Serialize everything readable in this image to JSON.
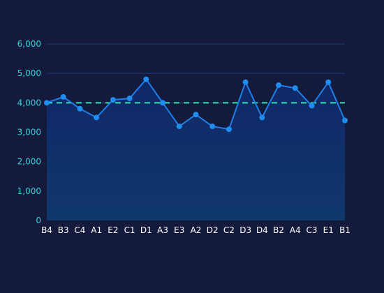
{
  "chart_data": {
    "type": "line",
    "title": "",
    "xlabel": "",
    "ylabel": "",
    "categories": [
      "B4",
      "B3",
      "C4",
      "A1",
      "E2",
      "C1",
      "D1",
      "A3",
      "E3",
      "A2",
      "D2",
      "C2",
      "D3",
      "D4",
      "B2",
      "A4",
      "C3",
      "E1",
      "B1"
    ],
    "series": [
      {
        "values": [
          4000,
          4200,
          3800,
          3500,
          4100,
          4150,
          4800,
          4000,
          3200,
          3600,
          3200,
          3100,
          4700,
          3500,
          4600,
          4500,
          3900,
          4700,
          3400
        ]
      }
    ],
    "reference_line": {
      "value": 4000,
      "style": "dashed"
    },
    "ylim": [
      0,
      6000
    ],
    "yticks": [
      0,
      1000,
      2000,
      3000,
      4000,
      5000,
      6000
    ],
    "ytick_labels": [
      "0",
      "1,000",
      "2,000",
      "3,000",
      "4,000",
      "5,000",
      "6,000"
    ],
    "grid": true,
    "area_fill": true,
    "legend": "none",
    "colors": {
      "background": "#141a3c",
      "line": "#1f7fe8",
      "marker": "#1f8cf0",
      "reference_line": "#2ee6b0",
      "grid": "#223a7a",
      "ytick_text": "#2fd3d8",
      "xtick_text": "#ffffff",
      "area_top": "#10286a",
      "area_bottom": "#103a6e"
    }
  }
}
